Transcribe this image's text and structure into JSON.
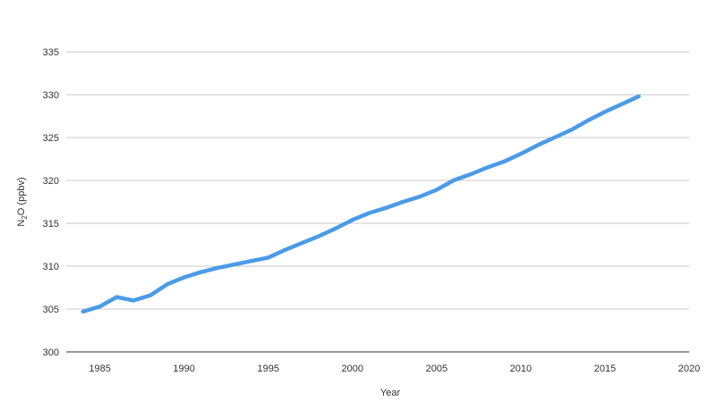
{
  "chart_data": {
    "type": "line",
    "title": "",
    "xlabel": "Year",
    "ylabel": {
      "prefix": "N",
      "sub": "2",
      "suffix": "O (ppbv)"
    },
    "xlim": [
      1983,
      2020
    ],
    "ylim": [
      300,
      335
    ],
    "xticks": [
      1985,
      1990,
      1995,
      2000,
      2005,
      2010,
      2015,
      2020
    ],
    "yticks": [
      300,
      305,
      310,
      315,
      320,
      325,
      330,
      335
    ],
    "grid": true,
    "legend": "none",
    "series": [
      {
        "color": "#4a9be8",
        "x": [
          1984,
          1985,
          1986,
          1987,
          1988,
          1989,
          1990,
          1991,
          1992,
          1993,
          1994,
          1995,
          1996,
          1997,
          1998,
          1999,
          2000,
          2001,
          2002,
          2003,
          2004,
          2005,
          2006,
          2007,
          2008,
          2009,
          2010,
          2011,
          2012,
          2013,
          2014,
          2015,
          2016,
          2017
        ],
        "y": [
          304.7,
          305.3,
          306.4,
          306.0,
          306.6,
          307.9,
          308.7,
          309.3,
          309.8,
          310.2,
          310.6,
          311.0,
          311.9,
          312.7,
          313.5,
          314.4,
          315.4,
          316.2,
          316.8,
          317.5,
          318.1,
          318.9,
          320.0,
          320.7,
          321.5,
          322.2,
          323.1,
          324.1,
          325.0,
          325.9,
          327.0,
          328.0,
          328.9,
          329.8
        ]
      }
    ]
  }
}
